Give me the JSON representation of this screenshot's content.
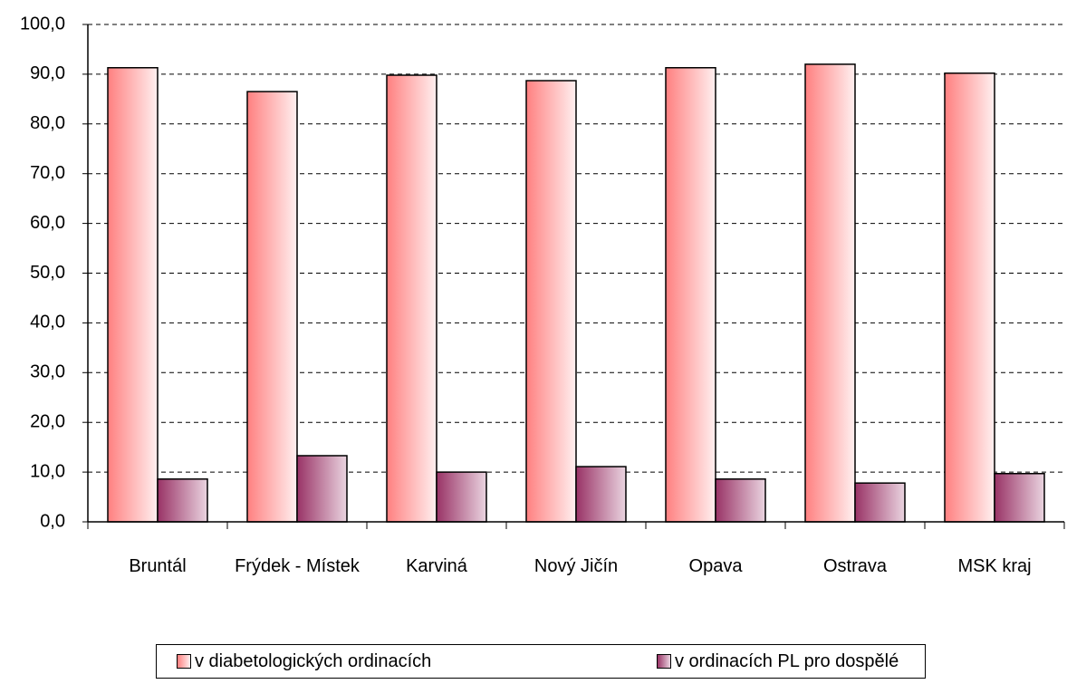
{
  "chart_data": {
    "type": "bar",
    "categories": [
      "Bruntál",
      "Frýdek - Místek",
      "Karviná",
      "Nový Jičín",
      "Opava",
      "Ostrava",
      "MSK kraj"
    ],
    "series": [
      {
        "name": "v diabetologických ordinacích",
        "color": "#ff8080",
        "values": [
          91.3,
          86.5,
          89.8,
          88.7,
          91.3,
          92.0,
          90.2
        ]
      },
      {
        "name": "v ordinacích PL pro dospělé",
        "color": "#993366",
        "values": [
          8.6,
          13.3,
          10.0,
          11.1,
          8.6,
          7.8,
          9.7
        ]
      }
    ],
    "ylim": [
      0,
      100
    ],
    "yticks": [
      {
        "value": 0,
        "label": "0,0"
      },
      {
        "value": 10,
        "label": "10,0"
      },
      {
        "value": 20,
        "label": "20,0"
      },
      {
        "value": 30,
        "label": "30,0"
      },
      {
        "value": 40,
        "label": "40,0"
      },
      {
        "value": 50,
        "label": "50,0"
      },
      {
        "value": 60,
        "label": "60,0"
      },
      {
        "value": 70,
        "label": "70,0"
      },
      {
        "value": 80,
        "label": "80,0"
      },
      {
        "value": 90,
        "label": "90,0"
      },
      {
        "value": 100,
        "label": "100,0"
      }
    ],
    "grid": true
  }
}
